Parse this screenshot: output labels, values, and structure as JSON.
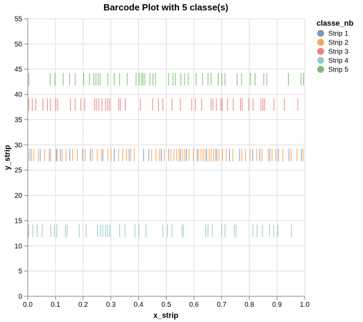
{
  "chart_data": {
    "type": "scatter",
    "mark": "tick",
    "title": "Barcode Plot with 5 classe(s)",
    "xlabel": "x_strip",
    "ylabel": "y_strip",
    "xlim": [
      0,
      1
    ],
    "ylim": [
      0,
      55
    ],
    "x_ticks": [
      "0.0",
      "0.1",
      "0.2",
      "0.3",
      "0.4",
      "0.5",
      "0.6",
      "0.7",
      "0.8",
      "0.9",
      "1.0"
    ],
    "y_ticks": [
      "0",
      "5",
      "10",
      "15",
      "20",
      "25",
      "30",
      "35",
      "40",
      "45",
      "50",
      "55"
    ],
    "grid": true,
    "legend_title": "classe_nb",
    "legend_position": "top-right",
    "series": [
      {
        "name": "Strip 1",
        "color": "#4c78a8",
        "y": 28,
        "x": [
          0.012,
          0.045,
          0.078,
          0.103,
          0.118,
          0.152,
          0.198,
          0.226,
          0.271,
          0.312,
          0.366,
          0.418,
          0.437,
          0.482,
          0.509,
          0.551,
          0.573,
          0.612,
          0.646,
          0.683,
          0.728,
          0.765,
          0.812,
          0.838,
          0.874,
          0.905,
          0.943,
          0.988
        ]
      },
      {
        "name": "Strip 2",
        "color": "#f58518",
        "y": 28,
        "x": [
          0.005,
          0.022,
          0.038,
          0.061,
          0.083,
          0.106,
          0.125,
          0.138,
          0.162,
          0.179,
          0.207,
          0.233,
          0.251,
          0.266,
          0.289,
          0.301,
          0.328,
          0.343,
          0.357,
          0.372,
          0.385,
          0.447,
          0.463,
          0.476,
          0.493,
          0.517,
          0.528,
          0.538,
          0.546,
          0.559,
          0.567,
          0.582,
          0.598,
          0.617,
          0.626,
          0.634,
          0.641,
          0.655,
          0.662,
          0.671,
          0.678,
          0.691,
          0.703,
          0.717,
          0.741,
          0.773,
          0.786,
          0.803,
          0.827,
          0.846,
          0.868,
          0.882,
          0.896,
          0.921,
          0.951,
          0.972,
          0.994
        ]
      },
      {
        "name": "Strip 3",
        "color": "#e45756",
        "y": 38,
        "x": [
          0.004,
          0.016,
          0.029,
          0.055,
          0.071,
          0.082,
          0.101,
          0.108,
          0.154,
          0.171,
          0.192,
          0.205,
          0.241,
          0.248,
          0.256,
          0.268,
          0.281,
          0.289,
          0.296,
          0.328,
          0.334,
          0.352,
          0.407,
          0.451,
          0.472,
          0.488,
          0.521,
          0.551,
          0.592,
          0.605,
          0.628,
          0.662,
          0.669,
          0.681,
          0.697,
          0.702,
          0.721,
          0.742,
          0.768,
          0.774,
          0.798,
          0.814,
          0.842,
          0.849,
          0.855,
          0.889,
          0.927,
          0.975
        ]
      },
      {
        "name": "Strip 4",
        "color": "#72b7b2",
        "y": 13,
        "x": [
          0.003,
          0.018,
          0.034,
          0.052,
          0.083,
          0.096,
          0.105,
          0.136,
          0.142,
          0.186,
          0.211,
          0.252,
          0.263,
          0.271,
          0.281,
          0.288,
          0.296,
          0.332,
          0.351,
          0.387,
          0.401,
          0.427,
          0.488,
          0.505,
          0.521,
          0.557,
          0.562,
          0.643,
          0.651,
          0.667,
          0.701,
          0.712,
          0.746,
          0.752,
          0.813,
          0.828,
          0.847,
          0.873,
          0.888,
          0.903,
          0.952
        ]
      },
      {
        "name": "Strip 5",
        "color": "#54a24b",
        "y": 43,
        "x": [
          0.004,
          0.081,
          0.098,
          0.128,
          0.151,
          0.171,
          0.202,
          0.223,
          0.238,
          0.246,
          0.254,
          0.261,
          0.289,
          0.312,
          0.332,
          0.359,
          0.391,
          0.402,
          0.411,
          0.416,
          0.423,
          0.441,
          0.452,
          0.461,
          0.508,
          0.524,
          0.533,
          0.553,
          0.566,
          0.579,
          0.608,
          0.631,
          0.651,
          0.662,
          0.688,
          0.701,
          0.712,
          0.756,
          0.772,
          0.804,
          0.821,
          0.852,
          0.863,
          0.941,
          0.987,
          0.996
        ]
      }
    ]
  }
}
